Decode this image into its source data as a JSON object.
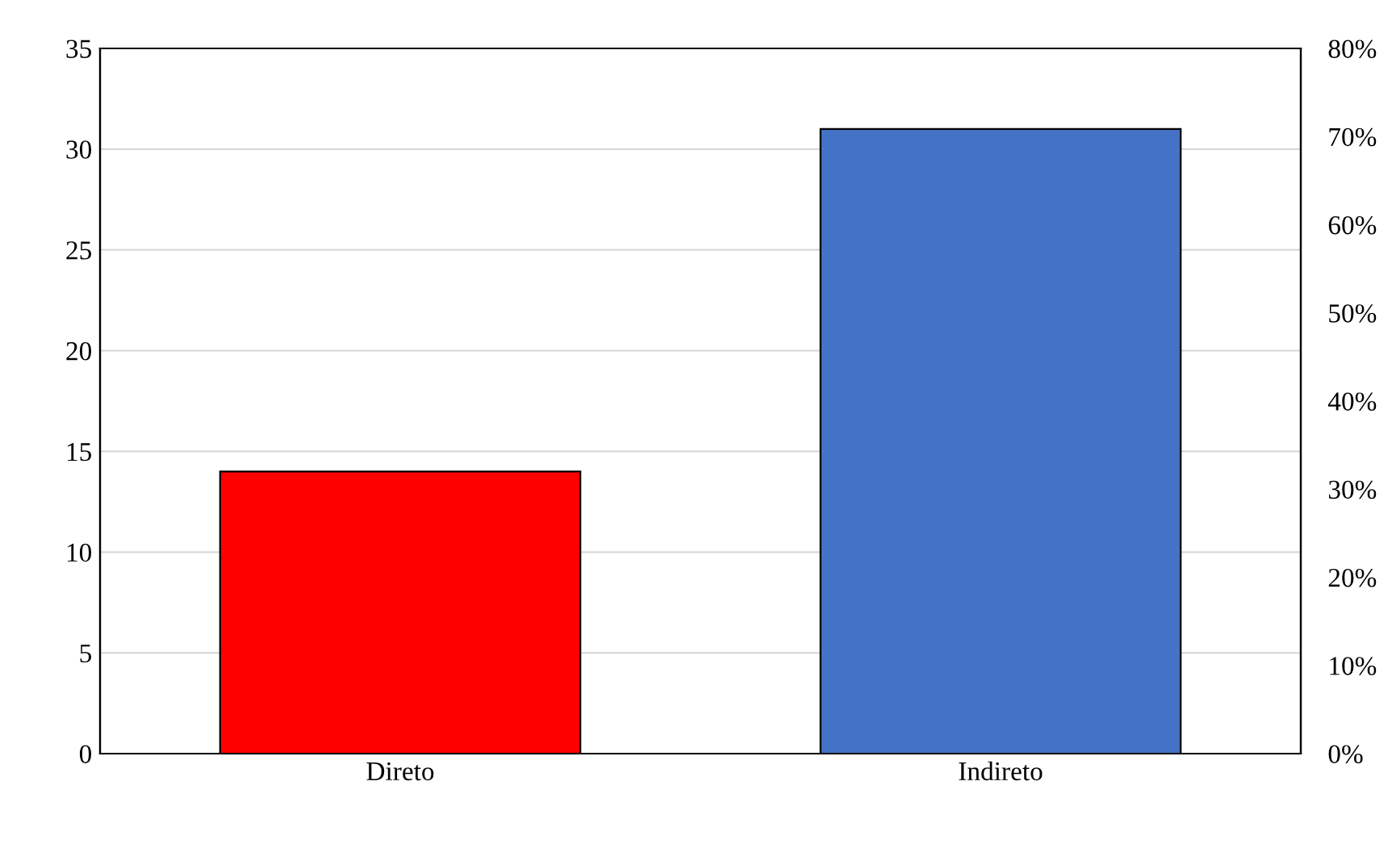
{
  "chart_data": {
    "type": "bar",
    "categories": [
      "Direto",
      "Indireto"
    ],
    "values": [
      14,
      31
    ],
    "colors": [
      "#ff0000",
      "#4472c4"
    ],
    "ylim": [
      0,
      35
    ],
    "yticks": [
      0,
      5,
      10,
      15,
      20,
      25,
      30,
      35
    ],
    "y2lim": [
      0,
      80
    ],
    "y2ticks": [
      {
        "value": 0,
        "label": "0%"
      },
      {
        "value": 10,
        "label": "10%"
      },
      {
        "value": 20,
        "label": "20%"
      },
      {
        "value": 30,
        "label": "30%"
      },
      {
        "value": 40,
        "label": "40%"
      },
      {
        "value": 50,
        "label": "50%"
      },
      {
        "value": 60,
        "label": "60%"
      },
      {
        "value": 70,
        "label": "70%"
      },
      {
        "value": 80,
        "label": "80%"
      }
    ],
    "grid": "y",
    "legend": false
  }
}
